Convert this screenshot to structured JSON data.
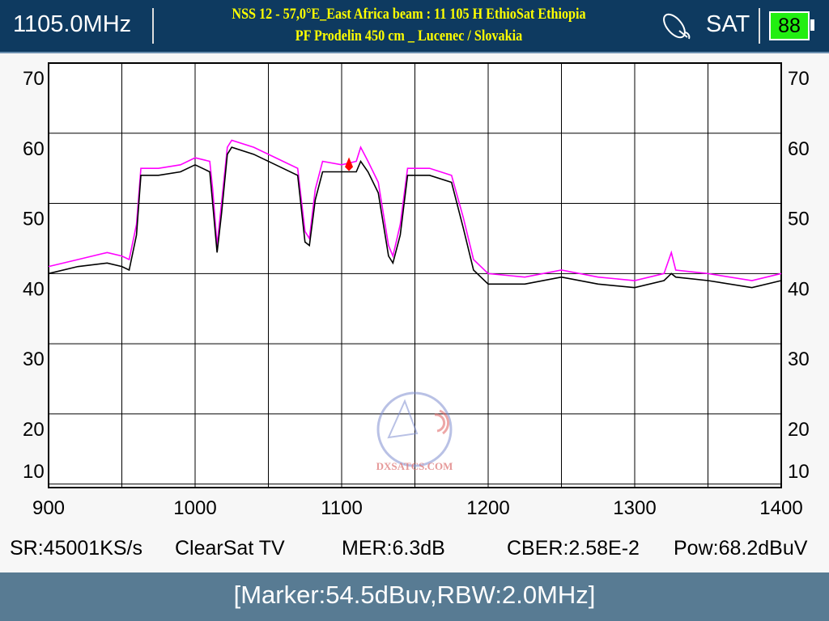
{
  "header": {
    "frequency": "1105.0MHz",
    "title_line1": "NSS 12 - 57,0°E_East Africa beam : 11 105 H EthioSat Ethiopia",
    "title_line2": "PF Prodelin 450 cm _ Lucenec / Slovakia",
    "mode": "SAT",
    "battery": "88",
    "battery_color": "#22ee11"
  },
  "watermark": "DXSATCS.COM",
  "chart_data": {
    "type": "line",
    "xlim": [
      900,
      1400
    ],
    "ylim": [
      9.5,
      70
    ],
    "x_ticks": [
      "900",
      "1000",
      "1100",
      "1200",
      "1300",
      "1400"
    ],
    "y_ticks": [
      "70",
      "60",
      "50",
      "40",
      "30",
      "20",
      "10"
    ],
    "grid": true,
    "series": [
      {
        "color": "#ff00ff",
        "x": [
          900,
          920,
          940,
          950,
          955,
          960,
          963,
          975,
          990,
          1000,
          1010,
          1012,
          1015,
          1018,
          1022,
          1025,
          1040,
          1060,
          1070,
          1075,
          1078,
          1082,
          1087,
          1100,
          1110,
          1113,
          1118,
          1125,
          1132,
          1135,
          1140,
          1145,
          1160,
          1175,
          1183,
          1190,
          1200,
          1225,
          1250,
          1275,
          1300,
          1320,
          1325,
          1328,
          1350,
          1380,
          1400
        ],
        "y": [
          41,
          42,
          43,
          42.5,
          42,
          47,
          55,
          55,
          55.5,
          56.5,
          56,
          52,
          44,
          50,
          58,
          59,
          58,
          56,
          55,
          46,
          45,
          52,
          56,
          55.5,
          56,
          58,
          56,
          53,
          44,
          42.5,
          47,
          55,
          55,
          54,
          48,
          42,
          40,
          39.5,
          40.5,
          39.5,
          39,
          40,
          43,
          40.5,
          40,
          39,
          40
        ]
      },
      {
        "color": "#000000",
        "x": [
          900,
          920,
          940,
          950,
          955,
          960,
          963,
          975,
          990,
          1000,
          1010,
          1012,
          1015,
          1018,
          1022,
          1025,
          1040,
          1060,
          1070,
          1075,
          1078,
          1082,
          1087,
          1100,
          1110,
          1113,
          1118,
          1125,
          1132,
          1135,
          1140,
          1145,
          1160,
          1175,
          1183,
          1190,
          1200,
          1225,
          1250,
          1275,
          1300,
          1320,
          1325,
          1328,
          1350,
          1380,
          1400
        ],
        "y": [
          40,
          41,
          41.5,
          41,
          40.5,
          45.5,
          54,
          54,
          54.5,
          55.5,
          54.5,
          50,
          43,
          48.5,
          57,
          58,
          57,
          55,
          54,
          44.5,
          44,
          50.5,
          54.5,
          54.5,
          54.5,
          56,
          54.5,
          51.5,
          42.5,
          41.5,
          45.5,
          54,
          54,
          53,
          46.5,
          40.5,
          38.5,
          38.5,
          39.5,
          38.5,
          38,
          39,
          40,
          39.5,
          39,
          38,
          39
        ]
      }
    ],
    "marker": {
      "x": 1105,
      "y": 54.5,
      "color": "#ff0000"
    }
  },
  "status": {
    "sr": "SR:45001KS/s",
    "channel": "ClearSat TV",
    "mer": "MER:6.3dB",
    "cber": "CBER:2.58E-2",
    "pow": "Pow:68.2dBuV"
  },
  "footer": {
    "marker_info": "[Marker:54.5dBuv,RBW:2.0MHz]"
  }
}
